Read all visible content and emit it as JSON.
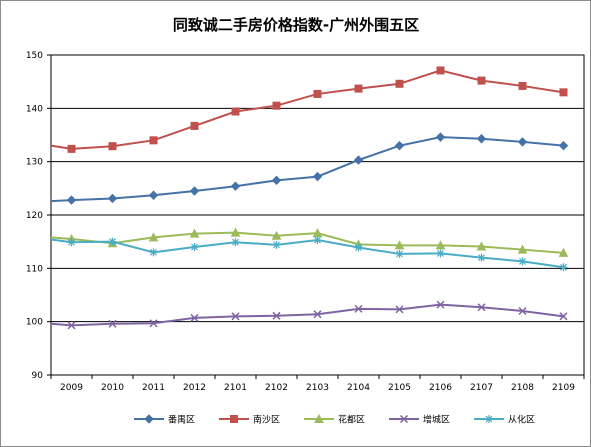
{
  "chart_data": {
    "type": "line",
    "title": "同致诚二手房价格指数-广州外围五区",
    "xlabel": "",
    "ylabel": "",
    "categories": [
      "2009",
      "2010",
      "2011",
      "2012",
      "2101",
      "2102",
      "2103",
      "2104",
      "2105",
      "2106",
      "2107",
      "2108",
      "2109"
    ],
    "ylim": [
      90,
      150
    ],
    "yticks": [
      90,
      100,
      110,
      120,
      130,
      140,
      150
    ],
    "grid": true,
    "legend": "bottom",
    "series": [
      {
        "name": "番禺区",
        "color": "#4572a7",
        "marker": "diamond",
        "start": 122.6,
        "values": [
          122.8,
          123.1,
          123.7,
          124.5,
          125.4,
          126.5,
          127.2,
          130.3,
          133.0,
          134.6,
          134.3,
          133.7,
          133.0
        ]
      },
      {
        "name": "南沙区",
        "color": "#c0504d",
        "marker": "square",
        "start": 133.0,
        "values": [
          132.4,
          132.9,
          134.0,
          136.7,
          139.4,
          140.5,
          142.7,
          143.7,
          144.6,
          147.1,
          145.2,
          144.2,
          143.0
        ]
      },
      {
        "name": "花都区",
        "color": "#9bbb59",
        "marker": "triangle",
        "start": 115.8,
        "values": [
          115.5,
          114.7,
          115.8,
          116.5,
          116.7,
          116.1,
          116.6,
          114.5,
          114.3,
          114.3,
          114.1,
          113.5,
          112.9
        ]
      },
      {
        "name": "增城区",
        "color": "#8064a2",
        "marker": "x",
        "start": 99.6,
        "values": [
          99.3,
          99.6,
          99.7,
          100.7,
          101.0,
          101.1,
          101.4,
          102.4,
          102.3,
          103.2,
          102.7,
          102.0,
          101.0
        ]
      },
      {
        "name": "从化区",
        "color": "#4bacc6",
        "marker": "star",
        "start": 115.4,
        "values": [
          114.9,
          115.0,
          113.0,
          114.0,
          114.9,
          114.4,
          115.3,
          113.9,
          112.7,
          112.8,
          112.0,
          111.3,
          110.2
        ]
      }
    ]
  }
}
